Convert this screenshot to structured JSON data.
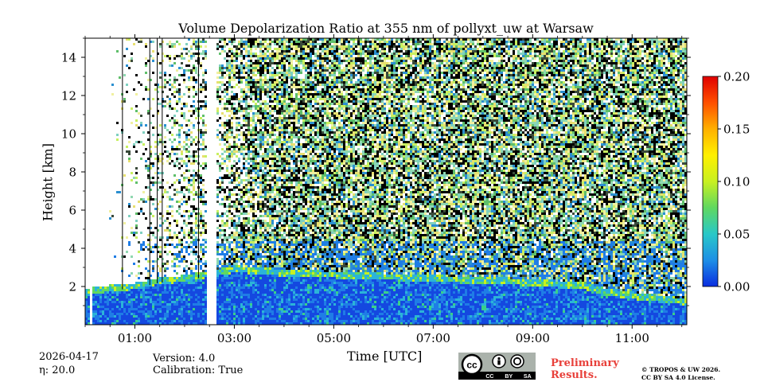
{
  "chart_data": {
    "type": "heatmap",
    "title": "Volume Depolarization Ratio at 355 nm of pollyxt_uw at Warsaw",
    "xlabel": "Time [UTC]",
    "ylabel": "Height [km]",
    "xlim_hours": [
      0.0,
      12.1
    ],
    "ylim_km": [
      0.0,
      15.0
    ],
    "x_ticks": [
      {
        "value": 1,
        "label": "01:00"
      },
      {
        "value": 3,
        "label": "03:00"
      },
      {
        "value": 5,
        "label": "05:00"
      },
      {
        "value": 7,
        "label": "07:00"
      },
      {
        "value": 9,
        "label": "09:00"
      },
      {
        "value": 11,
        "label": "11:00"
      }
    ],
    "y_ticks": [
      {
        "value": 2,
        "label": "2"
      },
      {
        "value": 4,
        "label": "4"
      },
      {
        "value": 6,
        "label": "6"
      },
      {
        "value": 8,
        "label": "8"
      },
      {
        "value": 10,
        "label": "10"
      },
      {
        "value": 12,
        "label": "12"
      },
      {
        "value": 14,
        "label": "14"
      }
    ],
    "colorbar": {
      "min": 0.0,
      "max": 0.2,
      "ticks": [
        {
          "value": 0.0,
          "label": "0.00"
        },
        {
          "value": 0.05,
          "label": "0.05"
        },
        {
          "value": 0.1,
          "label": "0.10"
        },
        {
          "value": 0.15,
          "label": "0.15"
        },
        {
          "value": 0.2,
          "label": "0.20"
        }
      ],
      "colormap": [
        "#0a2de0",
        "#1e8fe6",
        "#28c8c8",
        "#60d860",
        "#c8f020",
        "#fff000",
        "#ffb000",
        "#ff5000",
        "#e00000"
      ]
    },
    "boundary_layer_top_km": [
      {
        "t": 0.0,
        "h": 1.6
      },
      {
        "t": 0.5,
        "h": 1.8
      },
      {
        "t": 1.0,
        "h": 1.9
      },
      {
        "t": 1.5,
        "h": 2.2
      },
      {
        "t": 2.0,
        "h": 2.3
      },
      {
        "t": 3.0,
        "h": 2.8
      },
      {
        "t": 4.0,
        "h": 2.6
      },
      {
        "t": 5.0,
        "h": 2.5
      },
      {
        "t": 6.0,
        "h": 2.4
      },
      {
        "t": 7.0,
        "h": 2.3
      },
      {
        "t": 8.0,
        "h": 2.2
      },
      {
        "t": 9.0,
        "h": 2.1
      },
      {
        "t": 10.0,
        "h": 1.9
      },
      {
        "t": 10.5,
        "h": 1.6
      },
      {
        "t": 11.0,
        "h": 1.4
      },
      {
        "t": 12.0,
        "h": 1.1
      },
      {
        "t": 12.1,
        "h": 1.0
      }
    ],
    "data_gaps_hours": [
      [
        0.09,
        0.12
      ],
      [
        2.43,
        2.62
      ]
    ],
    "noise_onset_hours": 2.8
  },
  "footer": {
    "date": "2026-04-17",
    "eta": "η: 20.0",
    "version": "Version: 4.0",
    "calibration": "Calibration: True",
    "license_badge": "CC BY SA",
    "preliminary_line1": "Preliminary",
    "preliminary_line2": "Results.",
    "copyright_line1": "© TROPOS & UW 2026.",
    "copyright_line2": "CC BY SA 4.0 License."
  }
}
